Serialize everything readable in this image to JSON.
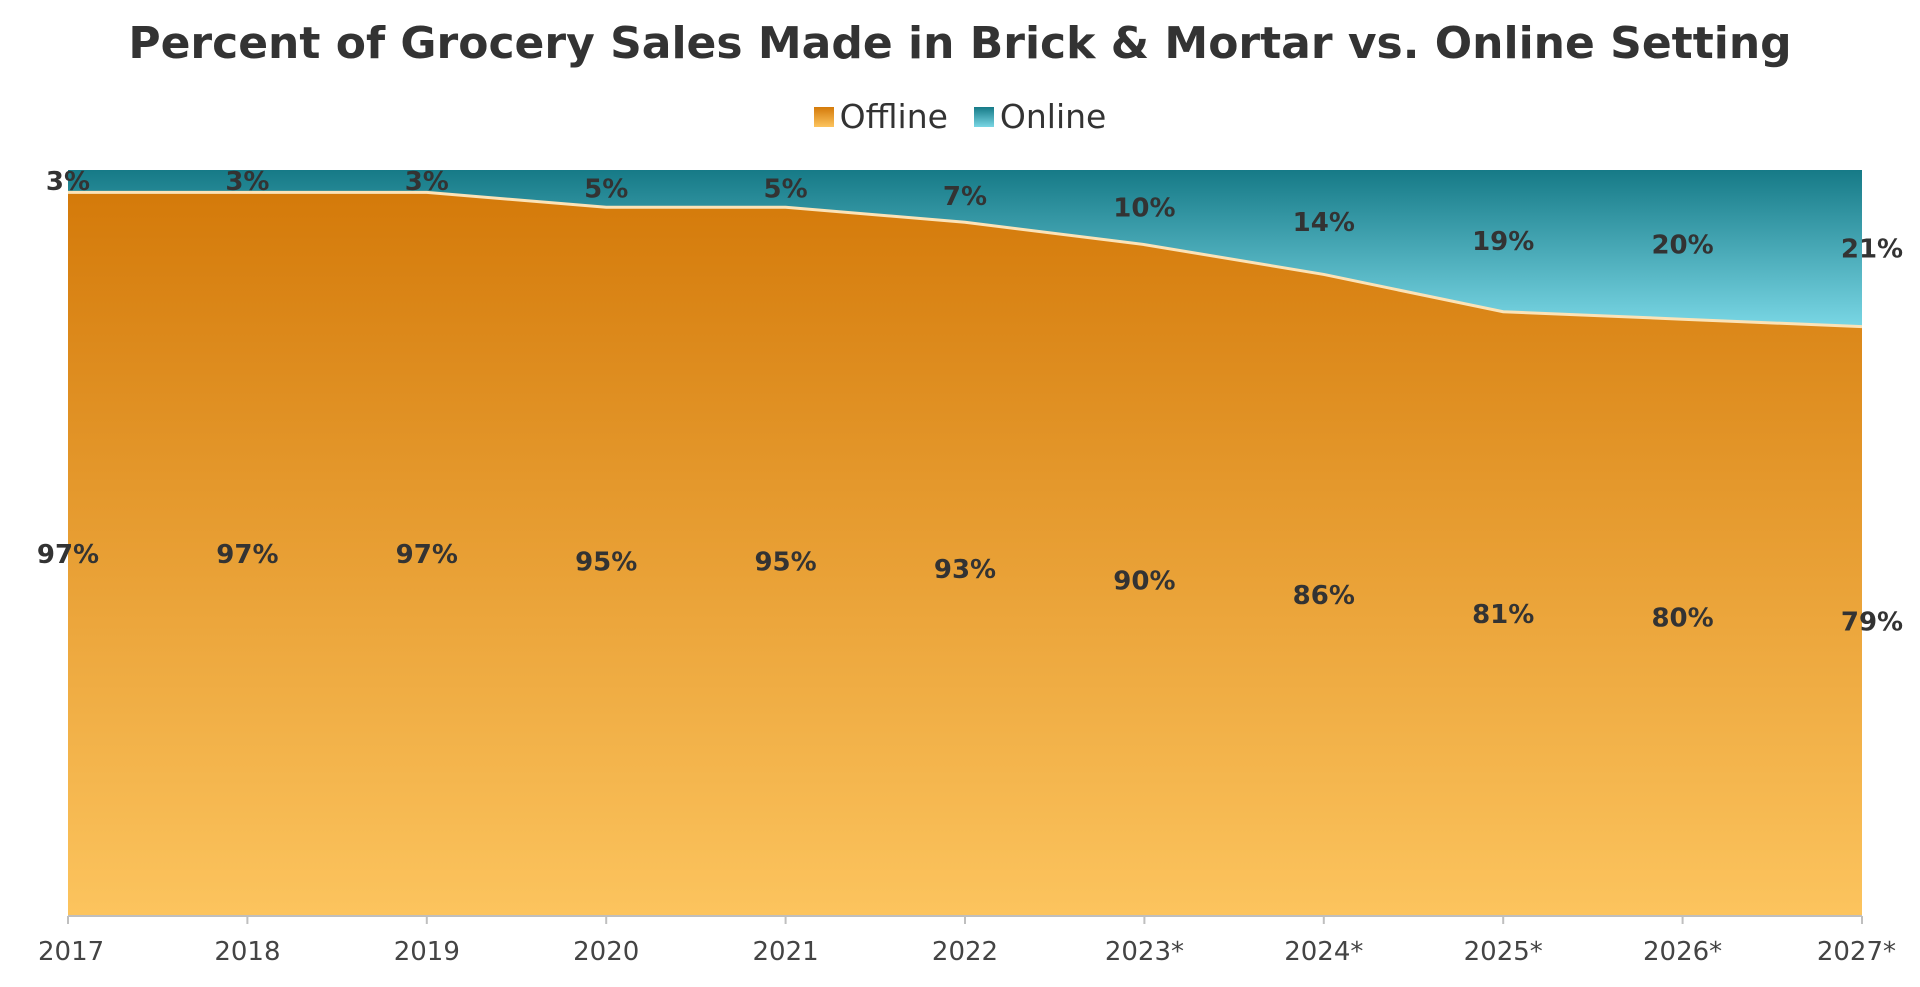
{
  "chart_data": {
    "type": "area",
    "stacked": true,
    "percent": true,
    "title": "Percent of Grocery Sales Made in Brick & Mortar vs. Online Setting",
    "categories": [
      "2017",
      "2018",
      "2019",
      "2020",
      "2021",
      "2022",
      "2023*",
      "2024*",
      "2025*",
      "2026*",
      "2027*"
    ],
    "series": [
      {
        "name": "Offline",
        "values": [
          97,
          97,
          97,
          95,
          95,
          93,
          90,
          86,
          81,
          80,
          79
        ],
        "labels": [
          "97%",
          "97%",
          "97%",
          "95%",
          "95%",
          "93%",
          "90%",
          "86%",
          "81%",
          "80%",
          "79%"
        ],
        "color_top": "#d47a0a",
        "color_bottom": "#fcc45e"
      },
      {
        "name": "Online",
        "values": [
          3,
          3,
          3,
          5,
          5,
          7,
          10,
          14,
          19,
          20,
          21
        ],
        "labels": [
          "3%",
          "3%",
          "3%",
          "5%",
          "5%",
          "7%",
          "10%",
          "14%",
          "19%",
          "20%",
          "21%"
        ],
        "color_top": "#167a87",
        "color_bottom": "#79d6e4"
      }
    ],
    "xlabel": "",
    "ylabel": "",
    "ylim": [
      0,
      100
    ],
    "legend_position": "top-center",
    "grid": false
  }
}
